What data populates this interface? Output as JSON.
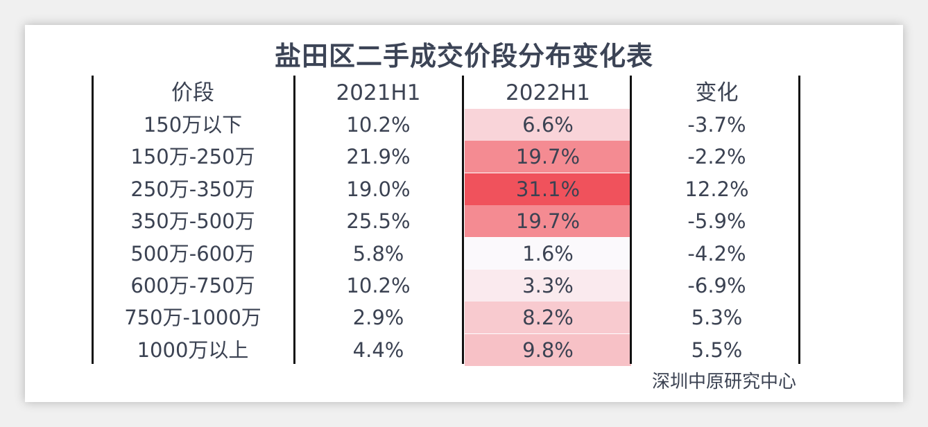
{
  "chart_data": {
    "type": "table",
    "title": "盐田区二手成交价段分布变化表",
    "columns": [
      "价段",
      "2021H1",
      "2022H1",
      "变化"
    ],
    "rows": [
      {
        "range": "150万以下",
        "h2021": "10.2%",
        "h2022": "6.6%",
        "change": "-3.7%",
        "h2022_value": 6.6
      },
      {
        "range": "150万-250万",
        "h2021": "21.9%",
        "h2022": "19.7%",
        "change": "-2.2%",
        "h2022_value": 19.7
      },
      {
        "range": "250万-350万",
        "h2021": "19.0%",
        "h2022": "31.1%",
        "change": "12.2%",
        "h2022_value": 31.1
      },
      {
        "range": "350万-500万",
        "h2021": "25.5%",
        "h2022": "19.7%",
        "change": "-5.9%",
        "h2022_value": 19.7
      },
      {
        "range": "500万-600万",
        "h2021": "5.8%",
        "h2022": "1.6%",
        "change": "-4.2%",
        "h2022_value": 1.6
      },
      {
        "range": "600万-750万",
        "h2021": "10.2%",
        "h2022": "3.3%",
        "change": "-6.9%",
        "h2022_value": 3.3
      },
      {
        "range": "750万-1000万",
        "h2021": "2.9%",
        "h2022": "8.2%",
        "change": "5.3%",
        "h2022_value": 8.2
      },
      {
        "range": "1000万以上",
        "h2021": "4.4%",
        "h2022": "9.8%",
        "change": "5.5%",
        "h2022_value": 9.8
      }
    ],
    "heatmap_colors": {
      "low": "#fbf9fc",
      "high": "#f0525c"
    },
    "source": "深圳中原研究中心"
  }
}
